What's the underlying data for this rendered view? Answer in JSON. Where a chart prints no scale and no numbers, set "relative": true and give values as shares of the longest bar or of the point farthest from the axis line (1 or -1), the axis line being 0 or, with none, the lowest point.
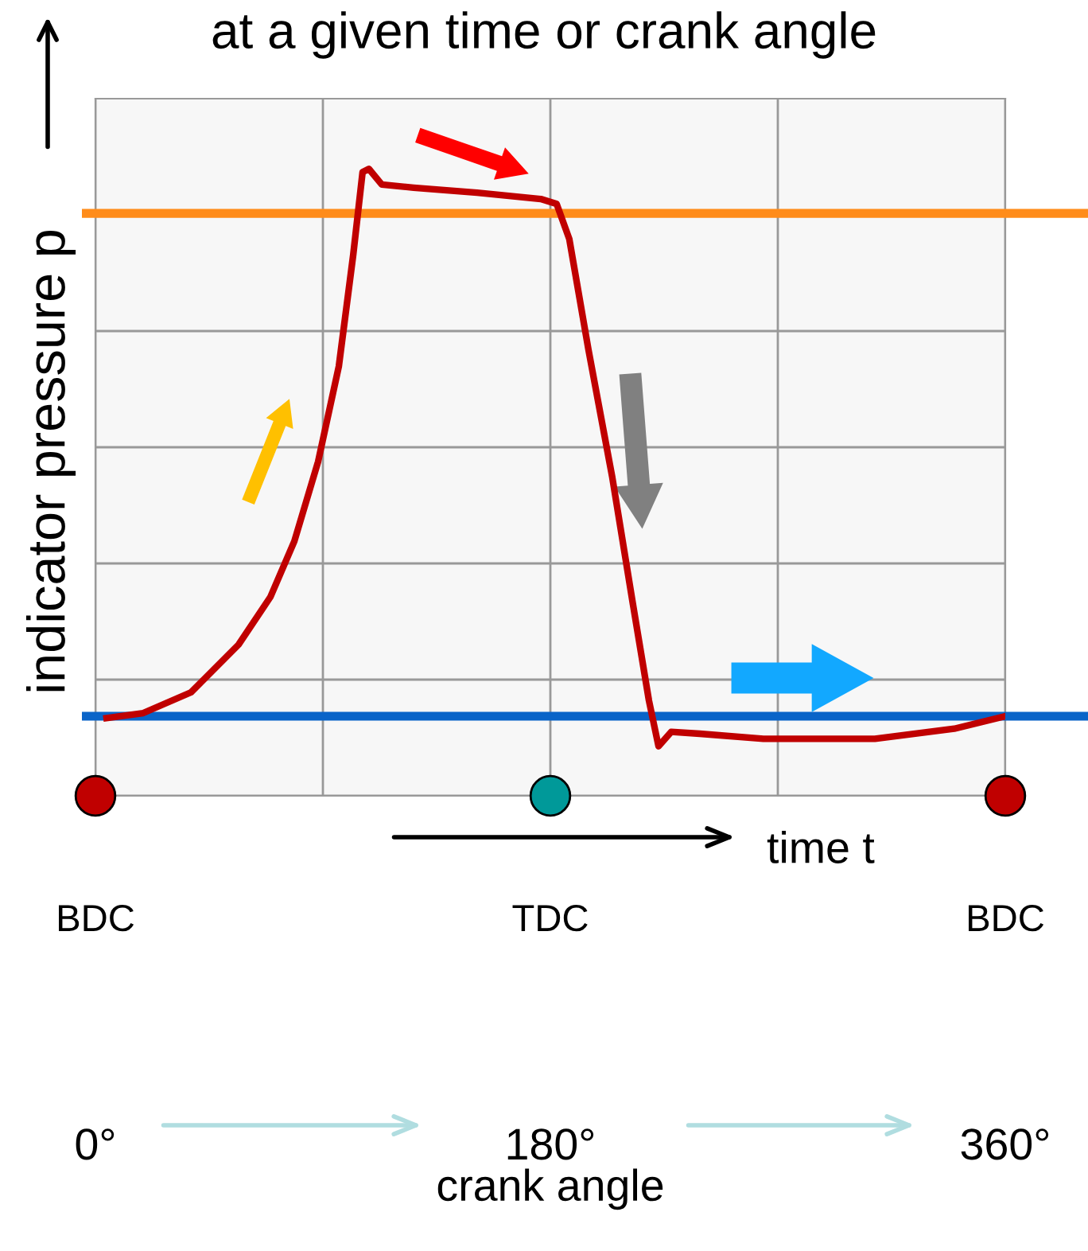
{
  "chart_data": {
    "type": "line",
    "title": "at a given time or crank angle",
    "relative": true,
    "ylabel": "indicator pressure p",
    "xlabel": "crank angle",
    "annotations": [
      "time t",
      "BDC",
      "TDC",
      "BDC"
    ],
    "xlim": [
      0,
      360
    ],
    "xticks": [
      {
        "value": 0,
        "label": "0°"
      },
      {
        "value": 180,
        "label": "180°"
      },
      {
        "value": 360,
        "label": "360°"
      }
    ],
    "grid": true,
    "line_style": "solid",
    "series": [
      {
        "type": "line",
        "color": "#c00000",
        "x": [
          4.4,
          18.9,
          37.8,
          56.6,
          69.2,
          78.7,
          88.1,
          96.3,
          102,
          105.7,
          108.2,
          113.3,
          125.9,
          151,
          176.2,
          182.5,
          187.5,
          195.1,
          204.5,
          212.7,
          219,
          222.8,
          227.8,
          239.1,
          264.3,
          308.4,
          339.8,
          360
        ],
        "values": [
          0.124,
          0.132,
          0.165,
          0.241,
          0.317,
          0.406,
          0.533,
          0.685,
          0.863,
          0.995,
          1.0,
          0.975,
          0.97,
          0.962,
          0.952,
          0.944,
          0.888,
          0.711,
          0.508,
          0.305,
          0.152,
          0.079,
          0.102,
          0.099,
          0.091,
          0.091,
          0.107,
          0.127
        ]
      },
      {
        "type": "scatter",
        "x": [
          0,
          180,
          360
        ],
        "values": [
          0,
          0,
          0
        ],
        "colors": [
          "#c00000",
          "#009999",
          "#c00000"
        ]
      }
    ],
    "ref_lines": [
      {
        "axis": "y",
        "value": 0.929,
        "color": "#ff8c1a"
      },
      {
        "axis": "y",
        "value": 0.127,
        "color": "#0a64c8"
      }
    ]
  }
}
